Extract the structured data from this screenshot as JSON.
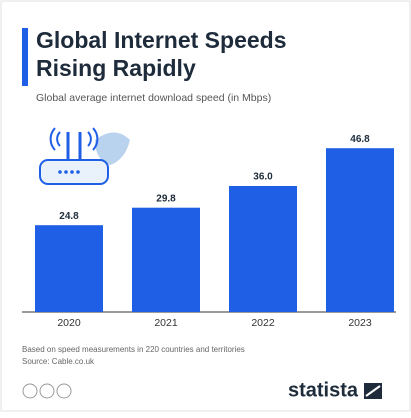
{
  "chart_data": {
    "type": "bar",
    "title": [
      "Global Internet Speeds",
      "Rising Rapidly"
    ],
    "subtitle": "Global average internet download speed (in Mbps)",
    "categories": [
      "2020",
      "2021",
      "2022",
      "2023"
    ],
    "values": [
      24.8,
      29.8,
      36.0,
      46.8
    ],
    "value_labels": [
      "24.8",
      "29.8",
      "36.0",
      "46.8"
    ],
    "color": "#1f5fe6",
    "notes": [
      "Based on speed measurements in 220 countries and territories",
      "Source: Cable.co.uk"
    ],
    "brand": "statista"
  }
}
